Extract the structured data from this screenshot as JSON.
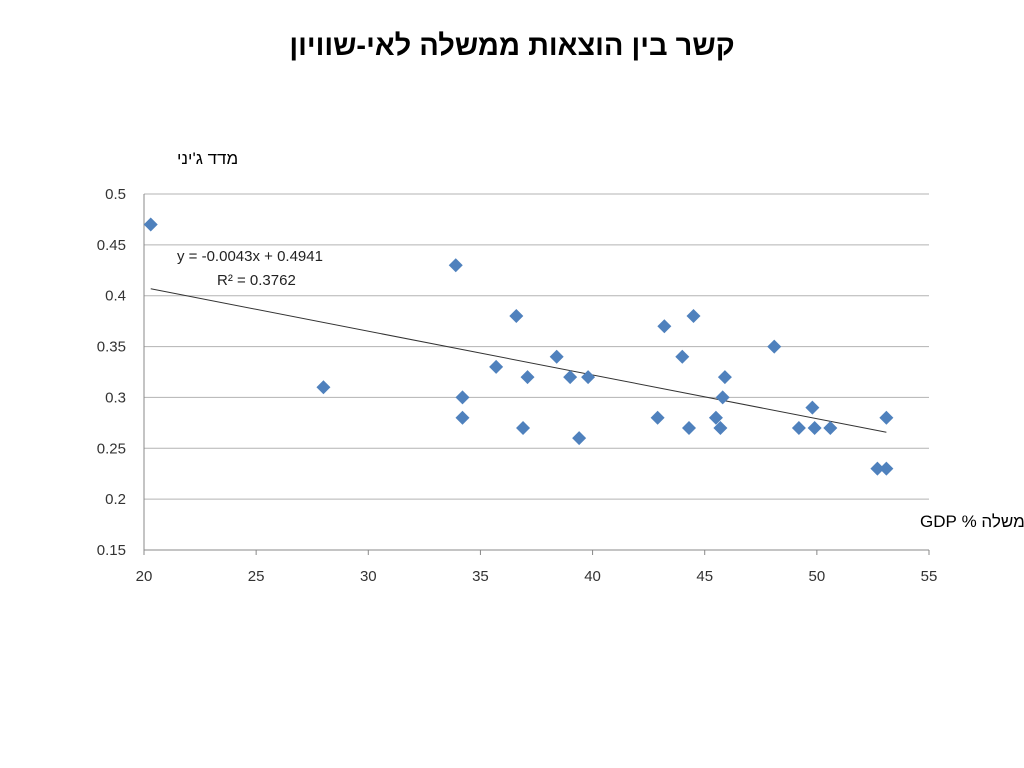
{
  "slide": {
    "title": "קשר בין הוצאות ממשלה לאי-שוויון"
  },
  "chart_data": {
    "type": "scatter",
    "ylabel": "מדד ג'יני",
    "xlabel": "הוצאות הממשלה % GDP",
    "xlim": [
      20,
      55
    ],
    "ylim": [
      0.15,
      0.5
    ],
    "x_ticks": [
      "20",
      "25",
      "30",
      "35",
      "40",
      "45",
      "50",
      "55"
    ],
    "y_ticks": [
      "0.15",
      "0.2",
      "0.25",
      "0.3",
      "0.35",
      "0.4",
      "0.45",
      "0.5"
    ],
    "grid": "horizontal",
    "series": [
      {
        "color": "#4F81BD",
        "marker": "diamond",
        "points": [
          [
            20.3,
            0.47
          ],
          [
            28.0,
            0.31
          ],
          [
            33.9,
            0.43
          ],
          [
            34.2,
            0.3
          ],
          [
            34.2,
            0.28
          ],
          [
            35.7,
            0.33
          ],
          [
            36.6,
            0.38
          ],
          [
            36.9,
            0.27
          ],
          [
            37.1,
            0.32
          ],
          [
            38.4,
            0.34
          ],
          [
            39.0,
            0.32
          ],
          [
            39.4,
            0.26
          ],
          [
            39.8,
            0.32
          ],
          [
            42.9,
            0.28
          ],
          [
            43.2,
            0.37
          ],
          [
            44.0,
            0.34
          ],
          [
            44.3,
            0.27
          ],
          [
            44.5,
            0.38
          ],
          [
            45.5,
            0.28
          ],
          [
            45.7,
            0.27
          ],
          [
            45.8,
            0.3
          ],
          [
            45.9,
            0.32
          ],
          [
            48.1,
            0.35
          ],
          [
            49.2,
            0.27
          ],
          [
            49.8,
            0.29
          ],
          [
            49.9,
            0.27
          ],
          [
            50.6,
            0.27
          ],
          [
            52.7,
            0.23
          ],
          [
            53.1,
            0.23
          ],
          [
            53.1,
            0.28
          ]
        ]
      }
    ],
    "trendline": {
      "type": "linear",
      "slope": -0.0043,
      "intercept": 0.4941,
      "x_range": [
        20.3,
        53.1
      ],
      "color": "#333333",
      "equation": "y = -0.0043x + 0.4941",
      "r_squared": "R² = 0.3762"
    }
  }
}
